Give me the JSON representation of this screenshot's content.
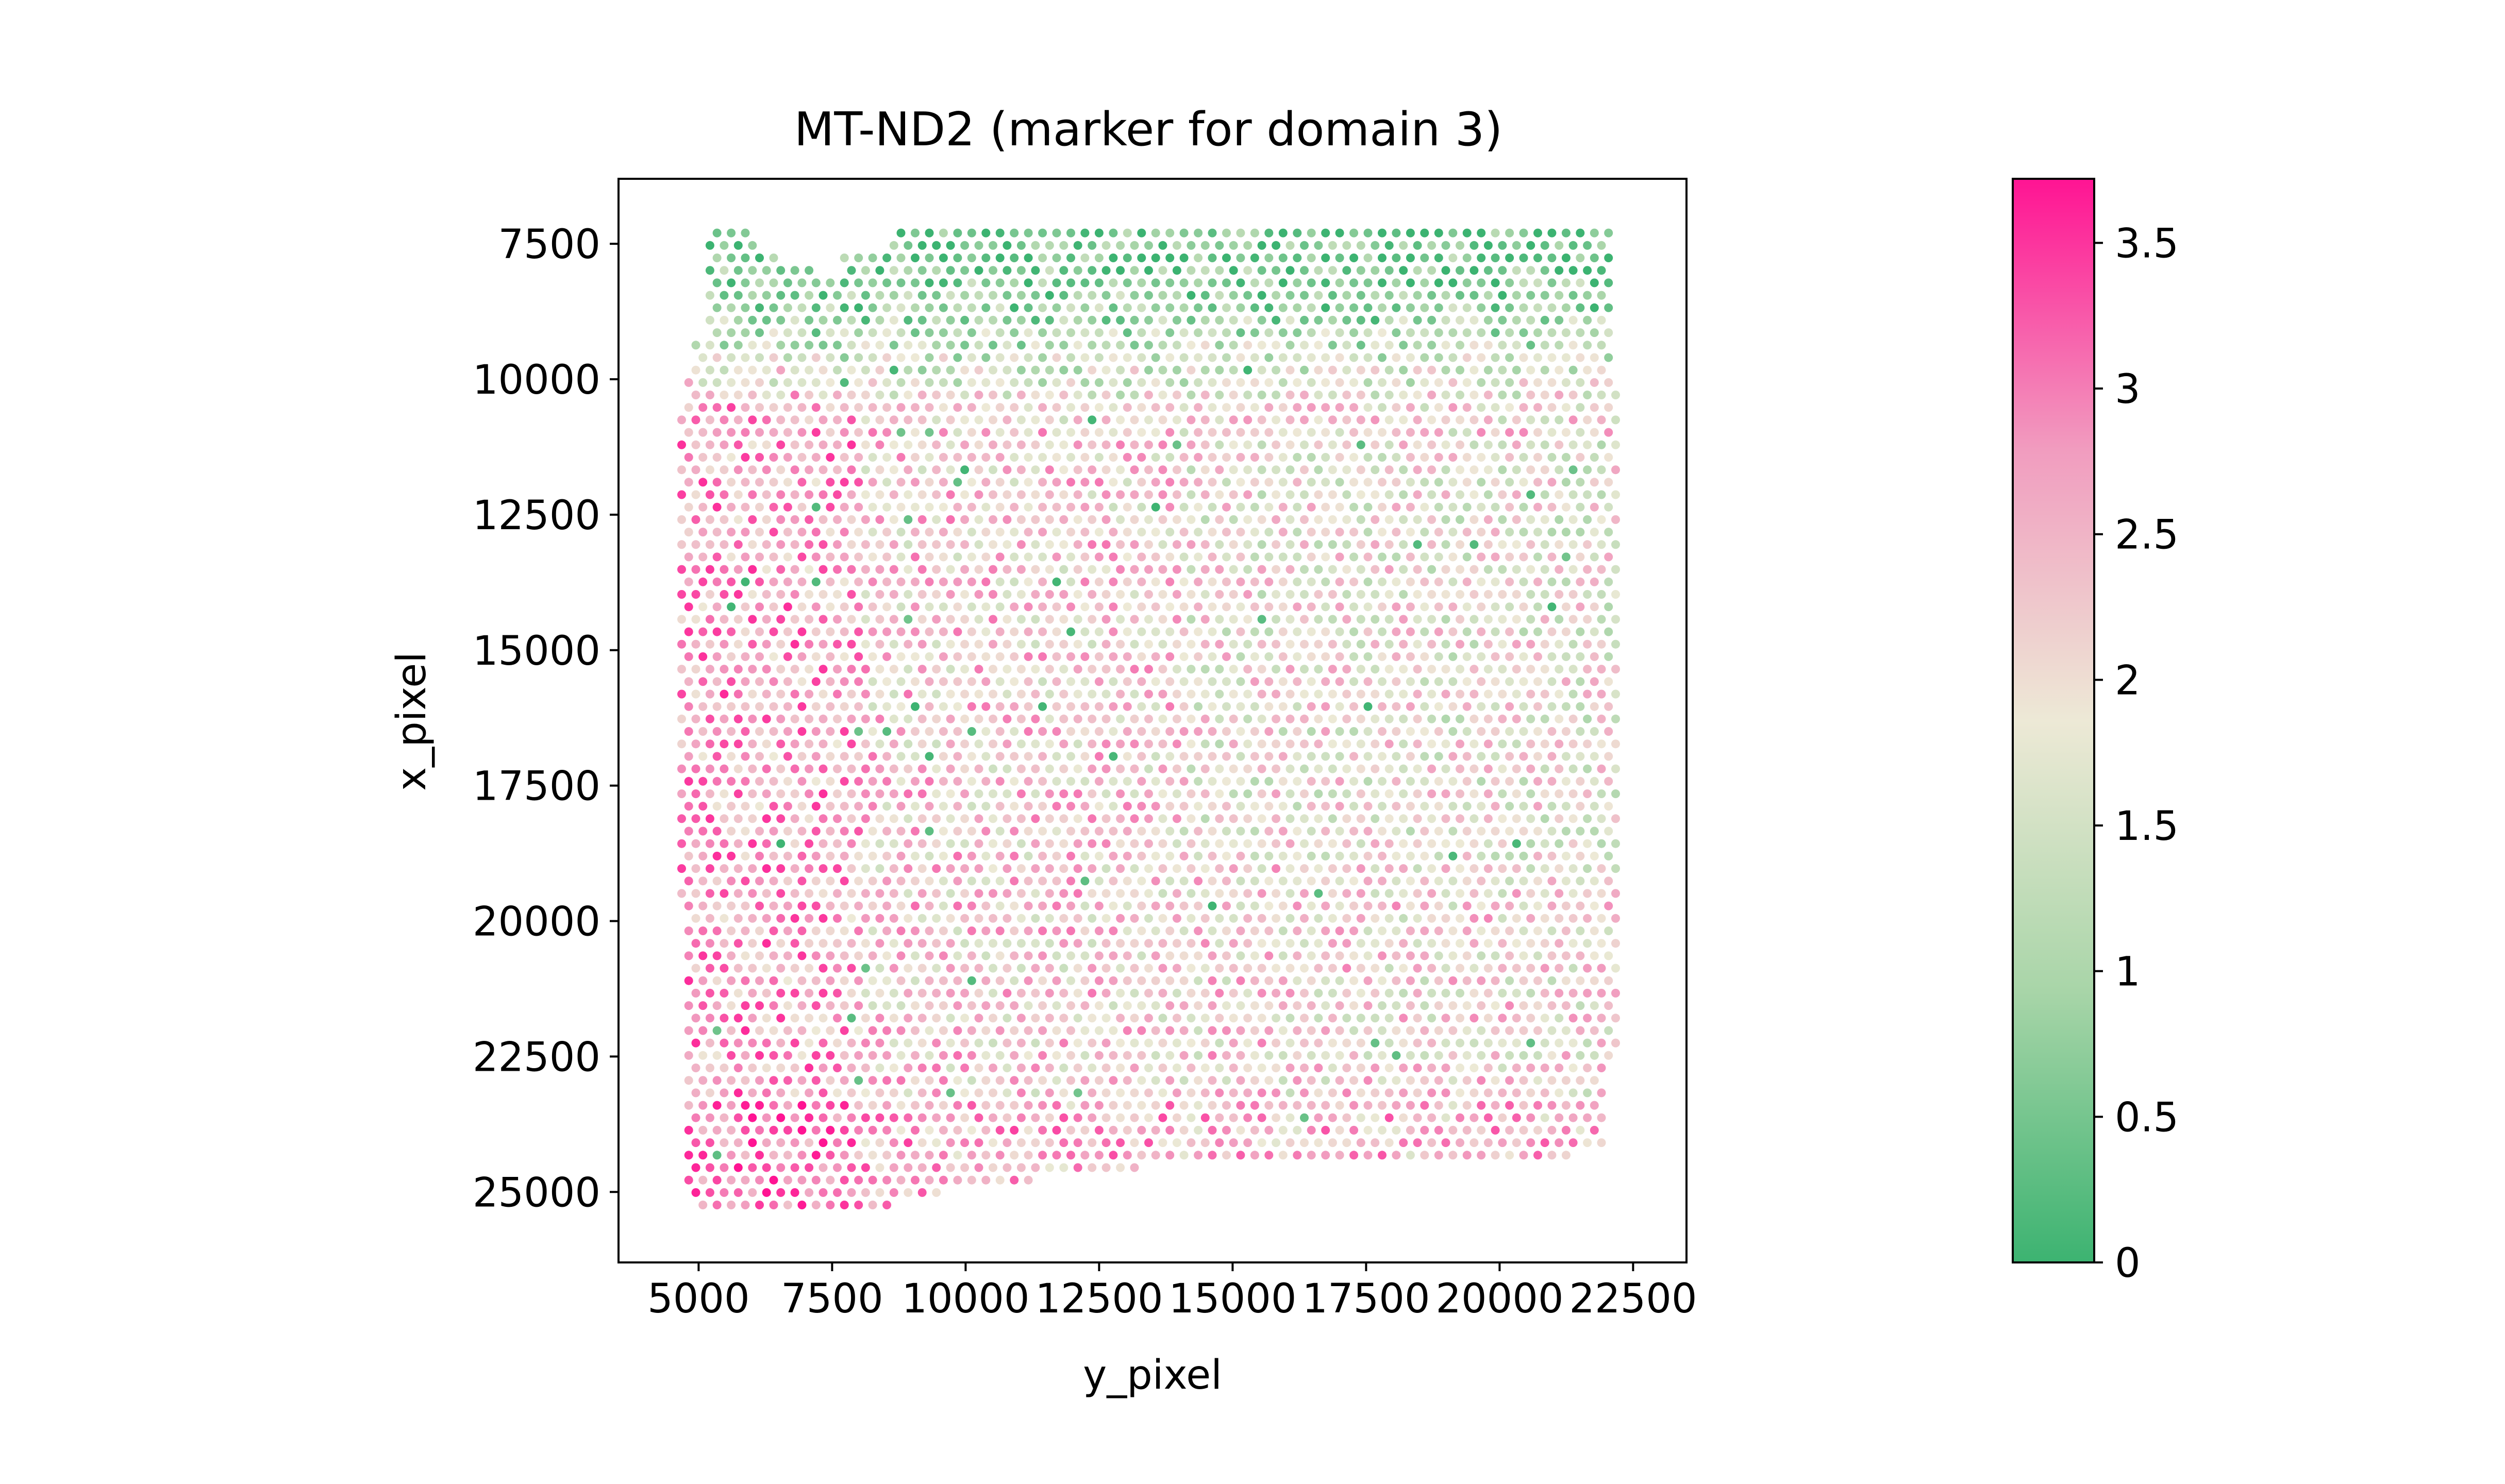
{
  "chart_data": {
    "type": "scatter",
    "title": "MT-ND2 (marker for domain 3)",
    "xlabel": "y_pixel",
    "ylabel": "x_pixel",
    "xlim": [
      3500,
      23500
    ],
    "ylim": [
      26300,
      6300
    ],
    "y_axis_inverted": true,
    "xticks": [
      5000,
      7500,
      10000,
      12500,
      15000,
      17500,
      20000,
      22500
    ],
    "xtick_labels": [
      "5000",
      "7500",
      "10000",
      "12500",
      "15000",
      "17500",
      "20000",
      "22500"
    ],
    "yticks": [
      7500,
      10000,
      12500,
      15000,
      17500,
      20000,
      22500,
      25000
    ],
    "ytick_labels": [
      "7500",
      "10000",
      "12500",
      "15000",
      "17500",
      "20000",
      "22500",
      "25000"
    ],
    "grid": false,
    "colorbar": {
      "vmin": 0,
      "vmax": 3.72,
      "ticks": [
        0,
        0.5,
        1,
        1.5,
        2,
        2.5,
        3,
        3.5
      ],
      "tick_labels": [
        "0",
        "0.5",
        "1",
        "1.5",
        "2",
        "2.5",
        "3",
        "3.5"
      ],
      "colormap_stops": [
        "#3cb371",
        "#a8d5a8",
        "#ede9d6",
        "#f19cbf",
        "#ff1493"
      ]
    },
    "spots": {
      "spacing": 265,
      "row_spacing": 230,
      "x_min": 4550,
      "x_max": 22300,
      "y_min": 7300,
      "y_max": 25450,
      "value_mean": 2.4,
      "value_range": [
        0,
        3.72
      ]
    }
  }
}
